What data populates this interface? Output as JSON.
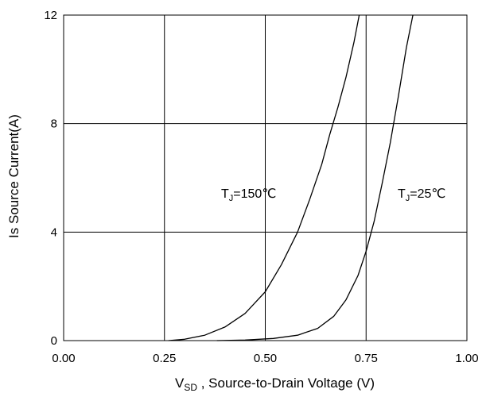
{
  "chart_data": {
    "type": "line",
    "title": "",
    "xlabel_main": "V",
    "xlabel_sub": "SD",
    "xlabel_rest": " , Source-to-Drain Voltage (V)",
    "ylabel": "Is Source Current(A)",
    "xlim": [
      0.0,
      1.0
    ],
    "ylim": [
      0,
      12
    ],
    "xticks": [
      "0.00",
      "0.25",
      "0.50",
      "0.75",
      "1.00"
    ],
    "yticks": [
      "0",
      "4",
      "8",
      "12"
    ],
    "grid": true,
    "line_color": "#000000",
    "series": [
      {
        "annotation": {
          "prefix": "T",
          "sub": "J",
          "suffix": "=150℃"
        },
        "x": [
          0.26,
          0.3,
          0.35,
          0.4,
          0.45,
          0.5,
          0.54,
          0.58,
          0.61,
          0.64,
          0.66,
          0.68,
          0.7,
          0.72,
          0.733
        ],
        "y": [
          0.0,
          0.05,
          0.2,
          0.5,
          1.0,
          1.8,
          2.8,
          4.0,
          5.2,
          6.5,
          7.6,
          8.6,
          9.7,
          11.0,
          12.0
        ]
      },
      {
        "annotation": {
          "prefix": "T",
          "sub": "J",
          "suffix": "=25℃"
        },
        "x": [
          0.38,
          0.45,
          0.52,
          0.58,
          0.63,
          0.67,
          0.7,
          0.73,
          0.75,
          0.77,
          0.79,
          0.81,
          0.83,
          0.85,
          0.866
        ],
        "y": [
          0.0,
          0.02,
          0.08,
          0.2,
          0.45,
          0.9,
          1.5,
          2.4,
          3.3,
          4.4,
          5.8,
          7.3,
          9.0,
          10.8,
          12.0
        ]
      }
    ]
  }
}
